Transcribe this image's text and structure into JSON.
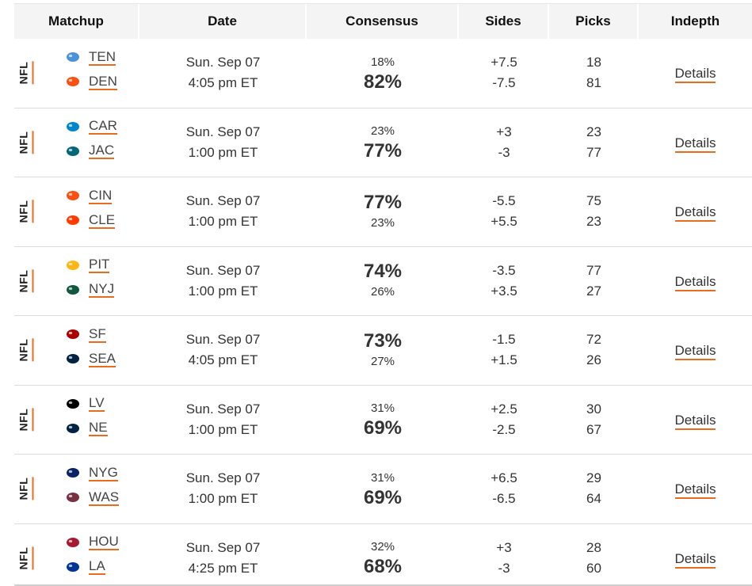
{
  "header": {
    "matchup": "Matchup",
    "date": "Date",
    "consensus": "Consensus",
    "sides": "Sides",
    "picks": "Picks",
    "indepth": "Indepth"
  },
  "rows": [
    {
      "league": "NFL",
      "away": {
        "abbr": "TEN",
        "icon": "titans-logo-icon",
        "color": "#4b92db"
      },
      "home": {
        "abbr": "DEN",
        "icon": "broncos-logo-icon",
        "color": "#fb4f14"
      },
      "date": "Sun. Sep 07",
      "time": "4:05 pm ET",
      "pct_away": "18%",
      "pct_home": "82%",
      "fav": "home",
      "side_away": "+7.5",
      "side_home": "-7.5",
      "picks_away": "18",
      "picks_home": "81",
      "details": "Details"
    },
    {
      "league": "NFL",
      "away": {
        "abbr": "CAR",
        "icon": "panthers-logo-icon",
        "color": "#0085ca"
      },
      "home": {
        "abbr": "JAC",
        "icon": "jaguars-logo-icon",
        "color": "#006778"
      },
      "date": "Sun. Sep 07",
      "time": "1:00 pm ET",
      "pct_away": "23%",
      "pct_home": "77%",
      "fav": "home",
      "side_away": "+3",
      "side_home": "-3",
      "picks_away": "23",
      "picks_home": "77",
      "details": "Details"
    },
    {
      "league": "NFL",
      "away": {
        "abbr": "CIN",
        "icon": "bengals-logo-icon",
        "color": "#fb4f14"
      },
      "home": {
        "abbr": "CLE",
        "icon": "browns-logo-icon",
        "color": "#ff3c00"
      },
      "date": "Sun. Sep 07",
      "time": "1:00 pm ET",
      "pct_away": "77%",
      "pct_home": "23%",
      "fav": "away",
      "side_away": "-5.5",
      "side_home": "+5.5",
      "picks_away": "75",
      "picks_home": "23",
      "details": "Details"
    },
    {
      "league": "NFL",
      "away": {
        "abbr": "PIT",
        "icon": "steelers-logo-icon",
        "color": "#ffb612"
      },
      "home": {
        "abbr": "NYJ",
        "icon": "jets-logo-icon",
        "color": "#125740"
      },
      "date": "Sun. Sep 07",
      "time": "1:00 pm ET",
      "pct_away": "74%",
      "pct_home": "26%",
      "fav": "away",
      "side_away": "-3.5",
      "side_home": "+3.5",
      "picks_away": "77",
      "picks_home": "27",
      "details": "Details"
    },
    {
      "league": "NFL",
      "away": {
        "abbr": "SF",
        "icon": "49ers-logo-icon",
        "color": "#aa0000"
      },
      "home": {
        "abbr": "SEA",
        "icon": "seahawks-logo-icon",
        "color": "#002244"
      },
      "date": "Sun. Sep 07",
      "time": "4:05 pm ET",
      "pct_away": "73%",
      "pct_home": "27%",
      "fav": "away",
      "side_away": "-1.5",
      "side_home": "+1.5",
      "picks_away": "72",
      "picks_home": "26",
      "details": "Details"
    },
    {
      "league": "NFL",
      "away": {
        "abbr": "LV",
        "icon": "raiders-logo-icon",
        "color": "#000000"
      },
      "home": {
        "abbr": "NE",
        "icon": "patriots-logo-icon",
        "color": "#002244"
      },
      "date": "Sun. Sep 07",
      "time": "1:00 pm ET",
      "pct_away": "31%",
      "pct_home": "69%",
      "fav": "home",
      "side_away": "+2.5",
      "side_home": "-2.5",
      "picks_away": "30",
      "picks_home": "67",
      "details": "Details"
    },
    {
      "league": "NFL",
      "away": {
        "abbr": "NYG",
        "icon": "giants-logo-icon",
        "color": "#0b2265"
      },
      "home": {
        "abbr": "WAS",
        "icon": "commanders-logo-icon",
        "color": "#773141"
      },
      "date": "Sun. Sep 07",
      "time": "1:00 pm ET",
      "pct_away": "31%",
      "pct_home": "69%",
      "fav": "home",
      "side_away": "+6.5",
      "side_home": "-6.5",
      "picks_away": "29",
      "picks_home": "64",
      "details": "Details"
    },
    {
      "league": "NFL",
      "away": {
        "abbr": "HOU",
        "icon": "texans-logo-icon",
        "color": "#a71930"
      },
      "home": {
        "abbr": "LA",
        "icon": "rams-logo-icon",
        "color": "#003594"
      },
      "date": "Sun. Sep 07",
      "time": "4:25 pm ET",
      "pct_away": "32%",
      "pct_home": "68%",
      "fav": "home",
      "side_away": "+3",
      "side_home": "-3",
      "picks_away": "28",
      "picks_home": "60",
      "details": "Details"
    }
  ]
}
